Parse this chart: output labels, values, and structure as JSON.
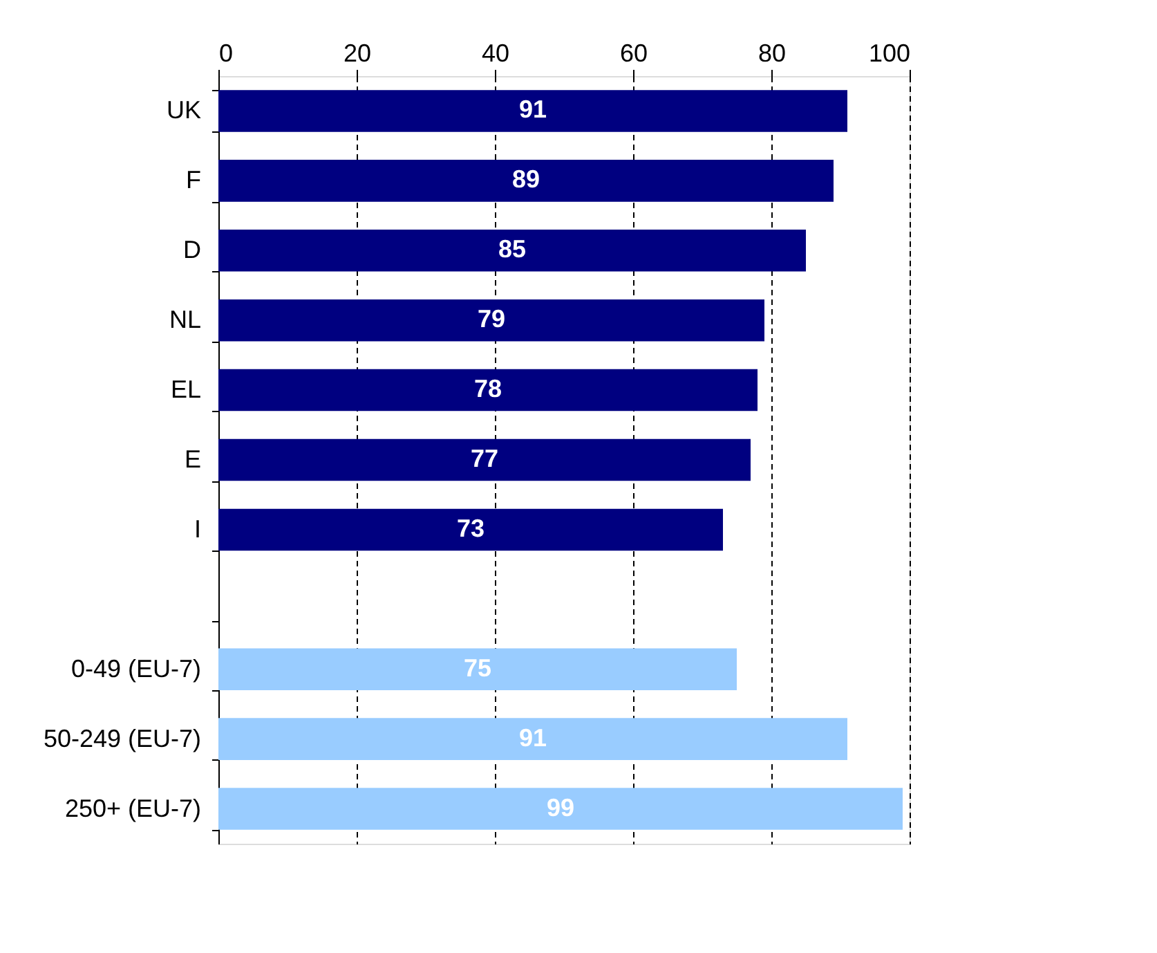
{
  "chart_data": {
    "type": "bar",
    "orientation": "horizontal",
    "categories": [
      "UK",
      "F",
      "D",
      "NL",
      "EL",
      "E",
      "I",
      null,
      "0-49 (EU-7)",
      "50-249 (EU-7)",
      "250+ (EU-7)"
    ],
    "values": [
      91,
      89,
      85,
      79,
      78,
      77,
      73,
      null,
      75,
      91,
      99
    ],
    "colors": [
      "#000080",
      "#000080",
      "#000080",
      "#000080",
      "#000080",
      "#000080",
      "#000080",
      "#000080",
      "#99ccff",
      "#99ccff",
      "#99ccff"
    ],
    "xlim": [
      0,
      100
    ],
    "xticks": [
      0,
      20,
      40,
      60,
      80,
      100
    ],
    "grid": "x",
    "data_labels": true
  }
}
